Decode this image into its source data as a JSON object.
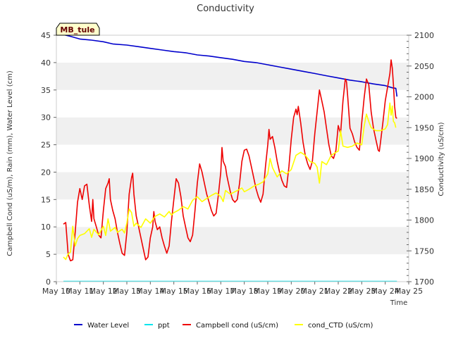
{
  "chart_data": {
    "type": "line",
    "title": "Conductivity",
    "xlabel": "Time",
    "ylabel_left": "Campbell Cond (uS/m), Rain (mm), Water Level (cm)",
    "ylabel_right": "Conductivity (uS/cm)",
    "x_ticks": [
      "May 10",
      "May 11",
      "May 12",
      "May 13",
      "May 14",
      "May 15",
      "May 16",
      "May 17",
      "May 18",
      "May 19",
      "May 20",
      "May 21",
      "May 22",
      "May 23",
      "May 24",
      "May 25"
    ],
    "xlim_days": [
      10,
      25
    ],
    "ylim_left": [
      0,
      45
    ],
    "yticks_left": [
      "0",
      "5",
      "10",
      "15",
      "20",
      "25",
      "30",
      "35",
      "40",
      "45"
    ],
    "ylim_right": [
      1700,
      2100
    ],
    "yticks_right": [
      "1700",
      "1750",
      "1800",
      "1850",
      "1900",
      "1950",
      "2000",
      "2050",
      "2100"
    ],
    "grid": "horizontal bands",
    "legend_position": "bottom",
    "annotation": "MB_tule",
    "series": [
      {
        "name": "Water Level",
        "color": "#0000cc",
        "axis": "left",
        "points": [
          [
            10.3,
            45.1
          ],
          [
            10.6,
            44.8
          ],
          [
            11.0,
            44.3
          ],
          [
            11.5,
            44.1
          ],
          [
            12.0,
            43.8
          ],
          [
            12.4,
            43.4
          ],
          [
            13.0,
            43.2
          ],
          [
            13.5,
            42.9
          ],
          [
            14.0,
            42.6
          ],
          [
            14.5,
            42.3
          ],
          [
            15.0,
            42.0
          ],
          [
            15.5,
            41.8
          ],
          [
            16.0,
            41.4
          ],
          [
            16.5,
            41.2
          ],
          [
            17.0,
            40.9
          ],
          [
            17.5,
            40.6
          ],
          [
            18.0,
            40.2
          ],
          [
            18.5,
            40.0
          ],
          [
            19.0,
            39.6
          ],
          [
            19.5,
            39.2
          ],
          [
            20.0,
            38.8
          ],
          [
            20.5,
            38.4
          ],
          [
            21.0,
            38.0
          ],
          [
            21.5,
            37.6
          ],
          [
            22.0,
            37.2
          ],
          [
            22.5,
            36.8
          ],
          [
            23.0,
            36.5
          ],
          [
            23.5,
            36.1
          ],
          [
            24.0,
            35.8
          ],
          [
            24.3,
            35.4
          ],
          [
            24.45,
            35.3
          ],
          [
            24.5,
            33.8
          ]
        ]
      },
      {
        "name": "ppt",
        "color": "#00e5ee",
        "axis": "left",
        "points": [
          [
            10.3,
            0.05
          ],
          [
            24.5,
            0.05
          ]
        ]
      },
      {
        "name": "Campbell cond (uS/cm)",
        "color": "#ee0000",
        "axis": "left",
        "points": [
          [
            10.3,
            10.5
          ],
          [
            10.4,
            10.8
          ],
          [
            10.5,
            5.0
          ],
          [
            10.6,
            3.8
          ],
          [
            10.7,
            4.0
          ],
          [
            10.8,
            9.0
          ],
          [
            10.9,
            14.5
          ],
          [
            11.0,
            17.0
          ],
          [
            11.1,
            15.0
          ],
          [
            11.2,
            17.5
          ],
          [
            11.3,
            17.8
          ],
          [
            11.4,
            14.0
          ],
          [
            11.5,
            11.0
          ],
          [
            11.55,
            15.0
          ],
          [
            11.6,
            11.5
          ],
          [
            11.7,
            10.0
          ],
          [
            11.8,
            8.5
          ],
          [
            11.9,
            8.0
          ],
          [
            12.0,
            13.0
          ],
          [
            12.1,
            17.0
          ],
          [
            12.2,
            18.0
          ],
          [
            12.25,
            18.8
          ],
          [
            12.3,
            15.0
          ],
          [
            12.4,
            13.0
          ],
          [
            12.5,
            11.5
          ],
          [
            12.6,
            9.0
          ],
          [
            12.7,
            7.0
          ],
          [
            12.8,
            5.2
          ],
          [
            12.9,
            4.8
          ],
          [
            13.0,
            9.0
          ],
          [
            13.1,
            16.0
          ],
          [
            13.2,
            19.0
          ],
          [
            13.25,
            19.8
          ],
          [
            13.3,
            16.0
          ],
          [
            13.4,
            12.0
          ],
          [
            13.5,
            10.0
          ],
          [
            13.6,
            8.0
          ],
          [
            13.7,
            6.0
          ],
          [
            13.8,
            4.0
          ],
          [
            13.9,
            4.5
          ],
          [
            14.0,
            8.0
          ],
          [
            14.1,
            10.0
          ],
          [
            14.15,
            12.8
          ],
          [
            14.2,
            11.0
          ],
          [
            14.3,
            9.5
          ],
          [
            14.4,
            10.0
          ],
          [
            14.5,
            8.0
          ],
          [
            14.6,
            6.5
          ],
          [
            14.7,
            5.2
          ],
          [
            14.8,
            6.5
          ],
          [
            14.9,
            11.0
          ],
          [
            15.0,
            15.0
          ],
          [
            15.1,
            18.8
          ],
          [
            15.2,
            18.0
          ],
          [
            15.3,
            15.5
          ],
          [
            15.4,
            12.0
          ],
          [
            15.5,
            10.0
          ],
          [
            15.6,
            8.0
          ],
          [
            15.7,
            7.3
          ],
          [
            15.8,
            8.5
          ],
          [
            15.9,
            13.0
          ],
          [
            16.0,
            18.0
          ],
          [
            16.1,
            21.5
          ],
          [
            16.2,
            20.0
          ],
          [
            16.3,
            18.0
          ],
          [
            16.4,
            16.0
          ],
          [
            16.5,
            14.5
          ],
          [
            16.6,
            13.0
          ],
          [
            16.7,
            12.0
          ],
          [
            16.8,
            12.5
          ],
          [
            16.9,
            16.0
          ],
          [
            17.0,
            20.0
          ],
          [
            17.05,
            24.5
          ],
          [
            17.1,
            22.0
          ],
          [
            17.2,
            21.0
          ],
          [
            17.25,
            19.5
          ],
          [
            17.3,
            18.5
          ],
          [
            17.4,
            16.5
          ],
          [
            17.5,
            15.0
          ],
          [
            17.6,
            14.5
          ],
          [
            17.7,
            15.0
          ],
          [
            17.8,
            18.0
          ],
          [
            17.9,
            22.0
          ],
          [
            18.0,
            24.0
          ],
          [
            18.1,
            24.2
          ],
          [
            18.2,
            23.0
          ],
          [
            18.3,
            21.0
          ],
          [
            18.4,
            19.0
          ],
          [
            18.5,
            17.0
          ],
          [
            18.6,
            15.5
          ],
          [
            18.7,
            14.5
          ],
          [
            18.8,
            16.0
          ],
          [
            18.9,
            21.0
          ],
          [
            19.0,
            25.0
          ],
          [
            19.05,
            27.8
          ],
          [
            19.1,
            26.0
          ],
          [
            19.2,
            26.5
          ],
          [
            19.3,
            24.5
          ],
          [
            19.4,
            22.0
          ],
          [
            19.5,
            20.0
          ],
          [
            19.6,
            18.5
          ],
          [
            19.7,
            17.5
          ],
          [
            19.8,
            17.2
          ],
          [
            19.9,
            21.0
          ],
          [
            20.0,
            26.0
          ],
          [
            20.1,
            30.0
          ],
          [
            20.2,
            31.5
          ],
          [
            20.25,
            30.5
          ],
          [
            20.3,
            32.0
          ],
          [
            20.4,
            29.0
          ],
          [
            20.5,
            25.5
          ],
          [
            20.6,
            23.0
          ],
          [
            20.7,
            21.5
          ],
          [
            20.8,
            20.5
          ],
          [
            20.9,
            22.0
          ],
          [
            21.0,
            27.0
          ],
          [
            21.1,
            31.0
          ],
          [
            21.2,
            35.0
          ],
          [
            21.3,
            33.0
          ],
          [
            21.4,
            31.0
          ],
          [
            21.5,
            28.0
          ],
          [
            21.6,
            25.0
          ],
          [
            21.7,
            23.0
          ],
          [
            21.8,
            22.5
          ],
          [
            21.9,
            24.0
          ],
          [
            22.0,
            28.5
          ],
          [
            22.1,
            27.0
          ],
          [
            22.2,
            33.0
          ],
          [
            22.3,
            37.0
          ],
          [
            22.35,
            36.5
          ],
          [
            22.4,
            34.0
          ],
          [
            22.5,
            28.0
          ],
          [
            22.6,
            27.0
          ],
          [
            22.7,
            25.5
          ],
          [
            22.8,
            24.5
          ],
          [
            22.9,
            24.0
          ],
          [
            23.0,
            29.0
          ],
          [
            23.1,
            33.5
          ],
          [
            23.2,
            37.0
          ],
          [
            23.3,
            36.0
          ],
          [
            23.4,
            31.0
          ],
          [
            23.5,
            28.0
          ],
          [
            23.6,
            26.0
          ],
          [
            23.7,
            24.0
          ],
          [
            23.75,
            23.8
          ],
          [
            23.8,
            25.5
          ],
          [
            23.9,
            29.0
          ],
          [
            24.0,
            33.0
          ],
          [
            24.1,
            35.5
          ],
          [
            24.2,
            38.0
          ],
          [
            24.25,
            40.5
          ],
          [
            24.3,
            39.0
          ],
          [
            24.35,
            36.0
          ],
          [
            24.4,
            32.0
          ],
          [
            24.45,
            30.0
          ],
          [
            24.5,
            29.8
          ]
        ]
      },
      {
        "name": "cond_CTD (uS/cm)",
        "color": "#ffff00",
        "axis": "right",
        "points": [
          [
            10.3,
            1740
          ],
          [
            10.4,
            1736
          ],
          [
            10.5,
            1745
          ],
          [
            10.6,
            1748
          ],
          [
            10.7,
            1790
          ],
          [
            10.8,
            1758
          ],
          [
            10.9,
            1770
          ],
          [
            11.0,
            1775
          ],
          [
            11.2,
            1778
          ],
          [
            11.4,
            1786
          ],
          [
            11.5,
            1772
          ],
          [
            11.6,
            1785
          ],
          [
            11.8,
            1776
          ],
          [
            12.0,
            1790
          ],
          [
            12.1,
            1775
          ],
          [
            12.2,
            1802
          ],
          [
            12.3,
            1782
          ],
          [
            12.5,
            1788
          ],
          [
            12.6,
            1780
          ],
          [
            12.8,
            1785
          ],
          [
            12.9,
            1779
          ],
          [
            13.0,
            1795
          ],
          [
            13.1,
            1818
          ],
          [
            13.2,
            1812
          ],
          [
            13.3,
            1790
          ],
          [
            13.4,
            1795
          ],
          [
            13.6,
            1788
          ],
          [
            13.8,
            1802
          ],
          [
            14.0,
            1795
          ],
          [
            14.2,
            1806
          ],
          [
            14.4,
            1810
          ],
          [
            14.6,
            1805
          ],
          [
            14.8,
            1814
          ],
          [
            14.9,
            1808
          ],
          [
            15.0,
            1812
          ],
          [
            15.2,
            1816
          ],
          [
            15.4,
            1822
          ],
          [
            15.6,
            1818
          ],
          [
            15.8,
            1832
          ],
          [
            16.0,
            1838
          ],
          [
            16.2,
            1830
          ],
          [
            16.4,
            1835
          ],
          [
            16.6,
            1840
          ],
          [
            16.8,
            1844
          ],
          [
            17.0,
            1838
          ],
          [
            17.1,
            1830
          ],
          [
            17.2,
            1848
          ],
          [
            17.4,
            1842
          ],
          [
            17.6,
            1846
          ],
          [
            17.8,
            1850
          ],
          [
            17.9,
            1852
          ],
          [
            18.0,
            1846
          ],
          [
            18.2,
            1850
          ],
          [
            18.4,
            1855
          ],
          [
            18.6,
            1858
          ],
          [
            18.8,
            1862
          ],
          [
            19.0,
            1875
          ],
          [
            19.1,
            1900
          ],
          [
            19.2,
            1885
          ],
          [
            19.4,
            1870
          ],
          [
            19.6,
            1880
          ],
          [
            19.8,
            1875
          ],
          [
            20.0,
            1882
          ],
          [
            20.2,
            1905
          ],
          [
            20.4,
            1910
          ],
          [
            20.6,
            1905
          ],
          [
            20.8,
            1895
          ],
          [
            21.0,
            1892
          ],
          [
            21.1,
            1886
          ],
          [
            21.2,
            1860
          ],
          [
            21.3,
            1895
          ],
          [
            21.5,
            1890
          ],
          [
            21.7,
            1905
          ],
          [
            21.9,
            1910
          ],
          [
            22.0,
            1912
          ],
          [
            22.1,
            1945
          ],
          [
            22.2,
            1920
          ],
          [
            22.4,
            1918
          ],
          [
            22.6,
            1920
          ],
          [
            22.8,
            1925
          ],
          [
            23.0,
            1922
          ],
          [
            23.1,
            1952
          ],
          [
            23.2,
            1972
          ],
          [
            23.3,
            1960
          ],
          [
            23.4,
            1950
          ],
          [
            23.6,
            1945
          ],
          [
            23.8,
            1945
          ],
          [
            24.0,
            1948
          ],
          [
            24.1,
            1955
          ],
          [
            24.2,
            1990
          ],
          [
            24.25,
            1970
          ],
          [
            24.3,
            1985
          ],
          [
            24.35,
            1960
          ],
          [
            24.4,
            1958
          ],
          [
            24.45,
            1950
          ]
        ]
      }
    ]
  }
}
